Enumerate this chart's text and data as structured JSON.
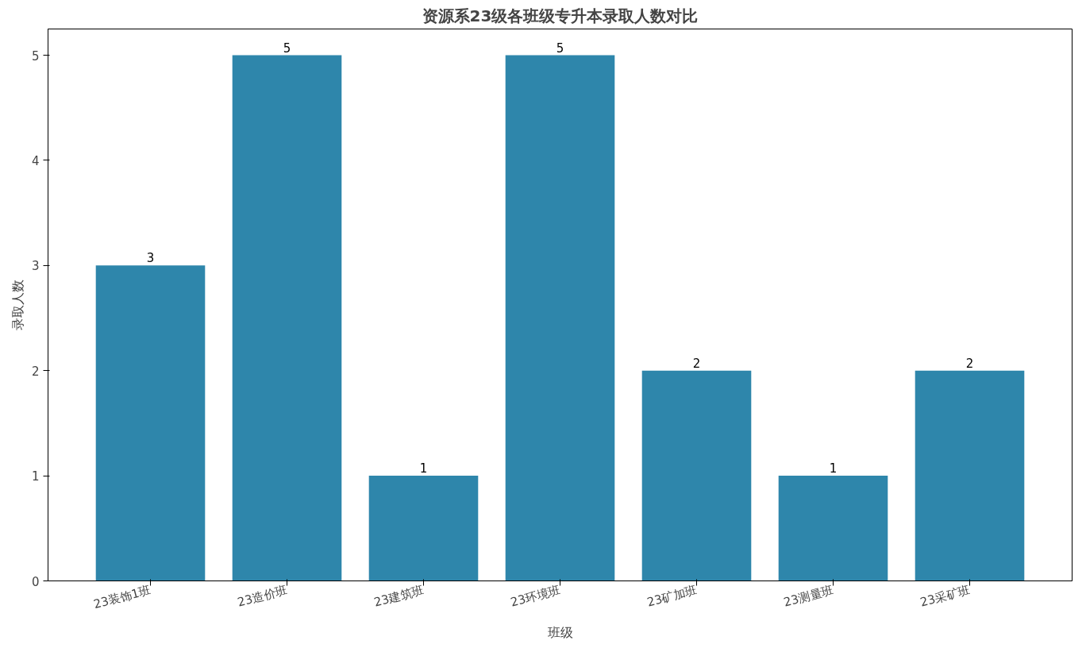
{
  "chart_data": {
    "type": "bar",
    "title": "资源系23级各班级专升本录取人数对比",
    "xlabel": "班级",
    "ylabel": "录取人数",
    "categories": [
      "23装饰1班",
      "23造价班",
      "23建筑班",
      "23环境班",
      "23矿加班",
      "23测量班",
      "23采矿班"
    ],
    "values": [
      3,
      5,
      1,
      5,
      2,
      1,
      2
    ],
    "color": "#2e86ab",
    "ylim": [
      0,
      5.25
    ],
    "yticks": [
      0,
      1,
      2,
      3,
      4,
      5
    ],
    "grid": false,
    "data_labels": true
  }
}
